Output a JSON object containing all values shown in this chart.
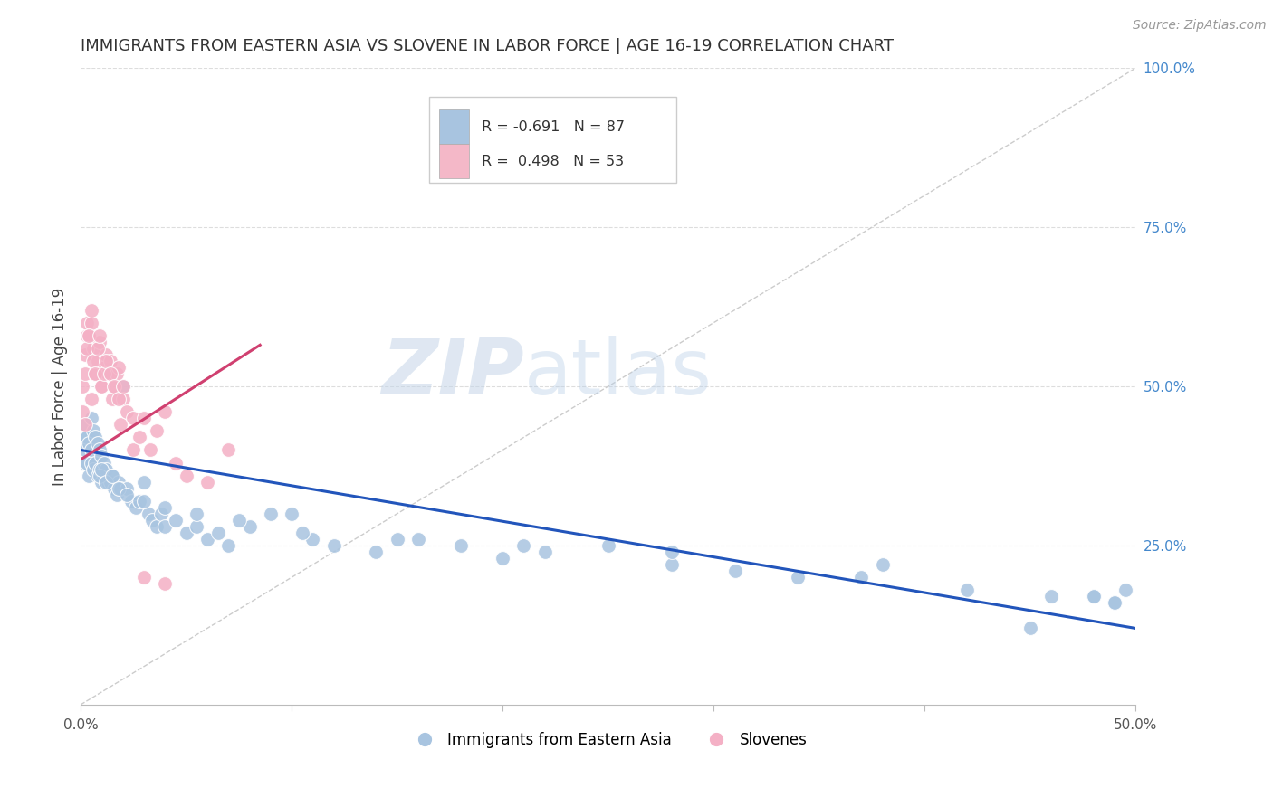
{
  "title": "IMMIGRANTS FROM EASTERN ASIA VS SLOVENE IN LABOR FORCE | AGE 16-19 CORRELATION CHART",
  "source": "Source: ZipAtlas.com",
  "ylabel": "In Labor Force | Age 16-19",
  "right_yticks": [
    "100.0%",
    "75.0%",
    "50.0%",
    "25.0%"
  ],
  "right_ytick_vals": [
    1.0,
    0.75,
    0.5,
    0.25
  ],
  "watermark_zip": "ZIP",
  "watermark_atlas": "atlas",
  "legend_entries": [
    {
      "label": "R = -0.691   N = 87",
      "color": "#a8c4e0"
    },
    {
      "label": "R =  0.498   N = 53",
      "color": "#f4b8c8"
    }
  ],
  "legend_labels": [
    "Immigrants from Eastern Asia",
    "Slovenes"
  ],
  "xlim": [
    0.0,
    0.5
  ],
  "ylim": [
    0.0,
    1.0
  ],
  "blue_color": "#a8c4e0",
  "pink_color": "#f4b0c5",
  "blue_line_color": "#2255bb",
  "pink_line_color": "#d04070",
  "dashed_line_color": "#cccccc",
  "grid_color": "#dddddd",
  "blue_line_x0": 0.0,
  "blue_line_y0": 0.4,
  "blue_line_x1": 0.5,
  "blue_line_y1": 0.12,
  "pink_line_x0": 0.0,
  "pink_line_y0": 0.385,
  "pink_line_x1": 0.085,
  "pink_line_y1": 0.565,
  "blue_x": [
    0.001,
    0.001,
    0.002,
    0.002,
    0.003,
    0.003,
    0.004,
    0.004,
    0.005,
    0.005,
    0.005,
    0.006,
    0.006,
    0.007,
    0.007,
    0.008,
    0.008,
    0.009,
    0.009,
    0.01,
    0.01,
    0.011,
    0.011,
    0.012,
    0.012,
    0.013,
    0.014,
    0.015,
    0.016,
    0.017,
    0.018,
    0.019,
    0.02,
    0.022,
    0.024,
    0.026,
    0.028,
    0.03,
    0.032,
    0.034,
    0.036,
    0.038,
    0.04,
    0.045,
    0.05,
    0.055,
    0.06,
    0.065,
    0.07,
    0.08,
    0.09,
    0.1,
    0.11,
    0.12,
    0.14,
    0.16,
    0.18,
    0.2,
    0.22,
    0.25,
    0.28,
    0.31,
    0.34,
    0.38,
    0.42,
    0.46,
    0.48,
    0.49,
    0.009,
    0.01,
    0.012,
    0.015,
    0.018,
    0.022,
    0.03,
    0.04,
    0.055,
    0.075,
    0.105,
    0.15,
    0.21,
    0.28,
    0.37,
    0.45,
    0.48,
    0.49,
    0.495
  ],
  "blue_y": [
    0.42,
    0.38,
    0.4,
    0.44,
    0.38,
    0.42,
    0.41,
    0.36,
    0.45,
    0.38,
    0.4,
    0.37,
    0.43,
    0.38,
    0.42,
    0.36,
    0.41,
    0.37,
    0.4,
    0.35,
    0.39,
    0.36,
    0.38,
    0.35,
    0.37,
    0.35,
    0.35,
    0.36,
    0.34,
    0.33,
    0.35,
    0.34,
    0.5,
    0.34,
    0.32,
    0.31,
    0.32,
    0.35,
    0.3,
    0.29,
    0.28,
    0.3,
    0.28,
    0.29,
    0.27,
    0.28,
    0.26,
    0.27,
    0.25,
    0.28,
    0.3,
    0.3,
    0.26,
    0.25,
    0.24,
    0.26,
    0.25,
    0.23,
    0.24,
    0.25,
    0.22,
    0.21,
    0.2,
    0.22,
    0.18,
    0.17,
    0.17,
    0.16,
    0.36,
    0.37,
    0.35,
    0.36,
    0.34,
    0.33,
    0.32,
    0.31,
    0.3,
    0.29,
    0.27,
    0.26,
    0.25,
    0.24,
    0.2,
    0.12,
    0.17,
    0.16,
    0.18
  ],
  "pink_x": [
    0.001,
    0.001,
    0.002,
    0.002,
    0.003,
    0.003,
    0.004,
    0.005,
    0.005,
    0.006,
    0.007,
    0.008,
    0.009,
    0.01,
    0.011,
    0.012,
    0.013,
    0.014,
    0.015,
    0.016,
    0.017,
    0.018,
    0.019,
    0.02,
    0.022,
    0.002,
    0.003,
    0.004,
    0.005,
    0.006,
    0.007,
    0.008,
    0.009,
    0.01,
    0.011,
    0.012,
    0.014,
    0.016,
    0.018,
    0.02,
    0.025,
    0.025,
    0.028,
    0.03,
    0.033,
    0.036,
    0.04,
    0.045,
    0.05,
    0.06,
    0.07,
    0.03,
    0.04
  ],
  "pink_y": [
    0.46,
    0.5,
    0.55,
    0.52,
    0.58,
    0.6,
    0.58,
    0.6,
    0.48,
    0.56,
    0.52,
    0.54,
    0.57,
    0.5,
    0.53,
    0.55,
    0.52,
    0.54,
    0.48,
    0.5,
    0.52,
    0.53,
    0.44,
    0.48,
    0.46,
    0.44,
    0.56,
    0.58,
    0.62,
    0.54,
    0.52,
    0.56,
    0.58,
    0.5,
    0.52,
    0.54,
    0.52,
    0.5,
    0.48,
    0.5,
    0.45,
    0.4,
    0.42,
    0.45,
    0.4,
    0.43,
    0.46,
    0.38,
    0.36,
    0.35,
    0.4,
    0.2,
    0.19
  ],
  "x_tick_positions": [
    0.0,
    0.1,
    0.2,
    0.3,
    0.4,
    0.5
  ],
  "x_tick_labels_show": [
    "0.0%",
    "",
    "",
    "",
    "",
    "50.0%"
  ]
}
